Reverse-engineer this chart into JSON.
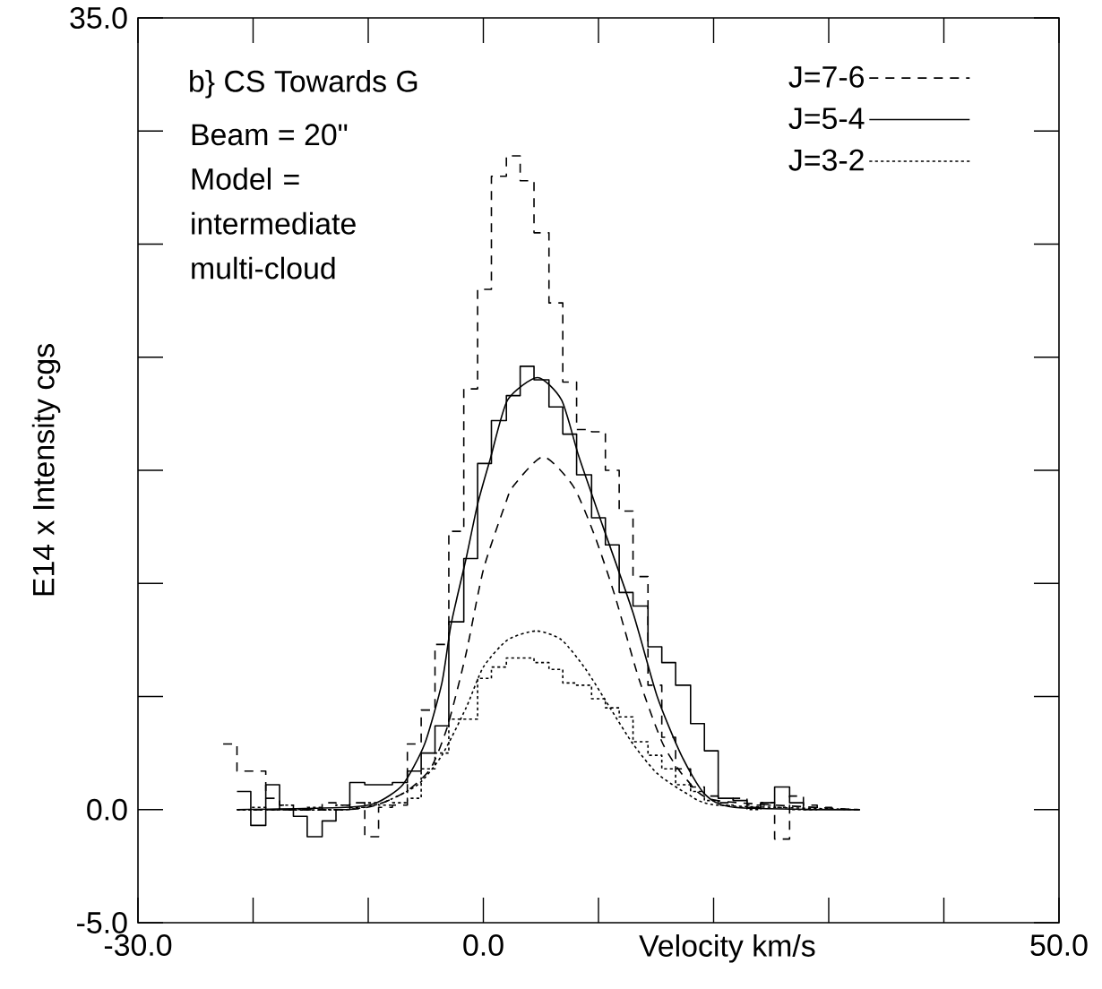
{
  "chart_data": {
    "type": "step",
    "xlabel": "Velocity km/s",
    "ylabel": "E14 x Intensity cgs",
    "annotations": [
      "b} CS Towards G",
      "Beam = 20\"",
      "Model = intermediate multi-cloud"
    ],
    "xlim": [
      -30,
      50
    ],
    "ylim": [
      -5,
      35
    ],
    "xticks": [
      {
        "value": -30,
        "label": "-30.0"
      },
      {
        "value": -20,
        "label": null
      },
      {
        "value": -10,
        "label": null
      },
      {
        "value": 0,
        "label": "0.0"
      },
      {
        "value": 10,
        "label": null
      },
      {
        "value": 20,
        "label": null
      },
      {
        "value": 30,
        "label": null
      },
      {
        "value": 40,
        "label": null
      },
      {
        "value": 50,
        "label": "50.0"
      }
    ],
    "yticks": [
      {
        "value": -5,
        "label": "-5.0"
      },
      {
        "value": 0,
        "label": "0.0"
      },
      {
        "value": 5,
        "label": null
      },
      {
        "value": 10,
        "label": null
      },
      {
        "value": 15,
        "label": null
      },
      {
        "value": 20,
        "label": null
      },
      {
        "value": 25,
        "label": null
      },
      {
        "value": 30,
        "label": null
      },
      {
        "value": 35,
        "label": "35.0"
      }
    ],
    "legend": "top right",
    "grid": false,
    "series": [
      {
        "name": "J=7-6",
        "line_style": "dashed",
        "color": "#000000",
        "x": [
          -22.6,
          -21.4,
          -20.2,
          -18.9,
          -17.7,
          -16.5,
          -15.3,
          -14.0,
          -12.8,
          -11.6,
          -10.3,
          -9.1,
          -7.9,
          -6.6,
          -5.4,
          -4.2,
          -3.0,
          -1.7,
          -0.5,
          0.7,
          2.0,
          3.2,
          4.4,
          5.7,
          6.9,
          8.1,
          9.4,
          10.6,
          11.8,
          13.0,
          14.3,
          15.5,
          16.7,
          18.0,
          19.2,
          20.4,
          21.7,
          22.9,
          24.1,
          25.3,
          26.6,
          27.8,
          29.0,
          30.3
        ],
        "values": [
          2.9,
          1.7,
          1.7,
          0.5,
          0.2,
          0.0,
          0.0,
          0.3,
          0.2,
          0.3,
          -1.2,
          0.1,
          0.2,
          2.9,
          4.4,
          7.3,
          12.3,
          18.6,
          23.0,
          28.0,
          28.9,
          27.8,
          25.5,
          22.4,
          18.9,
          16.8,
          16.7,
          15.0,
          13.2,
          10.3,
          5.5,
          3.2,
          1.8,
          1.0,
          0.6,
          0.3,
          0.5,
          0.2,
          0.3,
          -1.3,
          0.6,
          0.2,
          0.1,
          0.1
        ]
      },
      {
        "name": "J=5-4",
        "line_style": "solid",
        "color": "#000000",
        "x": [
          -21.4,
          -20.2,
          -18.9,
          -17.7,
          -16.5,
          -15.3,
          -14.0,
          -12.8,
          -11.6,
          -10.3,
          -9.1,
          -7.9,
          -6.6,
          -5.4,
          -4.2,
          -3.0,
          -1.7,
          -0.5,
          0.7,
          2.0,
          3.2,
          4.4,
          5.7,
          6.9,
          8.1,
          9.4,
          10.6,
          11.8,
          13.0,
          14.3,
          15.5,
          16.7,
          18.0,
          19.2,
          20.4,
          21.7,
          22.9,
          24.1,
          25.3,
          26.6,
          27.8,
          29.0,
          30.3,
          31.5,
          32.7
        ],
        "values": [
          0.8,
          -0.7,
          1.1,
          0.0,
          -0.3,
          -1.2,
          -0.5,
          0.0,
          1.2,
          1.1,
          1.1,
          1.2,
          1.7,
          2.5,
          3.7,
          8.3,
          11.1,
          15.3,
          17.2,
          18.3,
          19.6,
          19.0,
          17.8,
          16.6,
          14.8,
          12.9,
          11.7,
          9.6,
          9.0,
          7.2,
          6.5,
          5.5,
          3.8,
          2.6,
          0.5,
          0.4,
          0.1,
          0.3,
          1.0,
          0.3,
          0.0,
          0.0,
          0.0,
          0.0,
          0.0
        ]
      },
      {
        "name": "J=3-2",
        "line_style": "dotted",
        "color": "#000000",
        "x": [
          -21.4,
          -20.2,
          -18.9,
          -17.7,
          -16.5,
          -15.3,
          -14.0,
          -12.8,
          -11.6,
          -10.3,
          -9.1,
          -7.9,
          -6.6,
          -5.4,
          -4.2,
          -3.0,
          -1.7,
          -0.5,
          0.7,
          2.0,
          3.2,
          4.4,
          5.7,
          6.9,
          8.1,
          9.4,
          10.6,
          11.8,
          13.0,
          14.3,
          15.5,
          16.7,
          18.0,
          19.2,
          20.4,
          21.7,
          22.9,
          24.1,
          25.3,
          26.6,
          27.8,
          29.0
        ],
        "values": [
          0.0,
          0.1,
          0.0,
          0.2,
          0.0,
          0.1,
          0.0,
          0.2,
          0.1,
          0.3,
          0.2,
          0.3,
          0.5,
          1.8,
          2.5,
          4.0,
          4.0,
          5.8,
          6.3,
          6.7,
          6.7,
          6.5,
          6.2,
          5.6,
          5.5,
          4.9,
          4.5,
          4.1,
          3.0,
          2.4,
          1.8,
          1.1,
          0.8,
          0.4,
          0.2,
          0.1,
          0.0,
          0.2,
          0.1,
          0.0,
          0.0,
          0.0
        ]
      },
      {
        "type": "line",
        "line_style": "dashed",
        "color": "#000000",
        "x": [
          -21.4,
          -12.0,
          -9.3,
          -6.7,
          -4.6,
          -3.1,
          -1.5,
          0.0,
          1.9,
          2.6,
          5.2,
          7.8,
          9.6,
          11.4,
          13.5,
          15.6,
          17.7,
          20.3,
          32.7
        ],
        "values": [
          0,
          0.0,
          0.2,
          0.8,
          1.8,
          3.7,
          6.9,
          10.6,
          13.5,
          14.3,
          15.6,
          14.3,
          12.2,
          9.5,
          5.8,
          2.9,
          1.3,
          0.4,
          0
        ]
      },
      {
        "type": "line",
        "line_style": "solid",
        "color": "#000000",
        "x": [
          -21.4,
          -12.0,
          -9.3,
          -7.0,
          -5.1,
          -3.6,
          -2.8,
          -1.5,
          -0.5,
          0.6,
          2.1,
          4.7,
          6.8,
          8.3,
          10.4,
          13.0,
          15.1,
          17.2,
          19.2,
          21.8,
          32.7
        ],
        "values": [
          0,
          0.1,
          0.3,
          1.1,
          2.9,
          5.6,
          8.2,
          11.1,
          13.5,
          15.5,
          18.1,
          19.1,
          18.1,
          15.6,
          12.5,
          8.7,
          5.0,
          2.4,
          0.7,
          0.1,
          0
        ]
      },
      {
        "type": "line",
        "line_style": "dotted",
        "color": "#000000",
        "x": [
          -21.4,
          -12.0,
          -8.8,
          -5.7,
          -3.6,
          -1.5,
          0.0,
          2.1,
          4.6,
          6.8,
          8.9,
          11.0,
          13.0,
          15.1,
          17.7,
          20.3,
          32.7
        ],
        "values": [
          0,
          0.0,
          0.3,
          1.1,
          2.4,
          4.5,
          6.3,
          7.5,
          7.9,
          7.5,
          6.2,
          4.5,
          2.9,
          1.6,
          0.7,
          0.2,
          0
        ]
      }
    ]
  }
}
